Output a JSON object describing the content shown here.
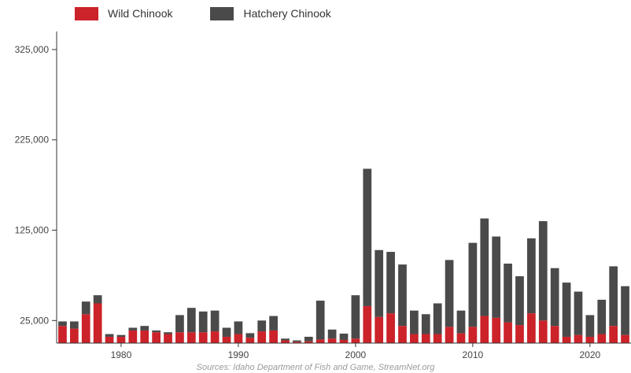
{
  "legend": {
    "wild_label": "Wild Chinook",
    "hatchery_label": "Hatchery Chinook"
  },
  "colors": {
    "wild": "#cc2229",
    "hatchery": "#4a4a4a",
    "axis": "#333333",
    "tick_text": "#444444"
  },
  "source": "Sources: Idaho Department of Fish and Game, StreamNet.org",
  "chart_data": {
    "type": "bar",
    "stacked": true,
    "categories": [
      1975,
      1976,
      1977,
      1978,
      1979,
      1980,
      1981,
      1982,
      1983,
      1984,
      1985,
      1986,
      1987,
      1988,
      1989,
      1990,
      1991,
      1992,
      1993,
      1994,
      1995,
      1996,
      1997,
      1998,
      1999,
      2000,
      2001,
      2002,
      2003,
      2004,
      2005,
      2006,
      2007,
      2008,
      2009,
      2010,
      2011,
      2012,
      2013,
      2014,
      2015,
      2016,
      2017,
      2018,
      2019,
      2020,
      2021,
      2022,
      2023
    ],
    "series": [
      {
        "name": "Wild Chinook",
        "values": [
          19000,
          16000,
          32000,
          44000,
          7000,
          7000,
          14000,
          14000,
          12000,
          10000,
          12000,
          12000,
          12000,
          13000,
          7000,
          10000,
          6000,
          13000,
          14000,
          3000,
          1500,
          2000,
          4000,
          5000,
          3500,
          5000,
          41000,
          29000,
          33000,
          19000,
          10000,
          10000,
          10000,
          18000,
          11000,
          18000,
          30000,
          28000,
          23000,
          20000,
          33000,
          25000,
          19000,
          7000,
          9000,
          7000,
          10000,
          19000,
          9000
        ]
      },
      {
        "name": "Hatchery Chinook",
        "values": [
          5000,
          8000,
          14000,
          9000,
          3000,
          2000,
          3000,
          5000,
          2000,
          2000,
          19000,
          27000,
          23000,
          23000,
          10000,
          14000,
          5000,
          12000,
          16000,
          2000,
          1500,
          5000,
          43000,
          10000,
          7000,
          48000,
          152000,
          74000,
          68000,
          68000,
          26000,
          22000,
          34000,
          74000,
          25000,
          93000,
          108000,
          90000,
          65000,
          54000,
          83000,
          110000,
          64000,
          60000,
          48000,
          24000,
          38000,
          66000,
          54000
        ]
      }
    ],
    "x_ticks": [
      1980,
      1990,
      2000,
      2010,
      2020
    ],
    "x_tick_labels": [
      "1980",
      "1990",
      "2000",
      "2010",
      "2020"
    ],
    "y_ticks": [
      25000,
      125000,
      225000,
      325000
    ],
    "y_tick_labels": [
      "25,000",
      "125,000",
      "225,000",
      "325,000"
    ],
    "xlim": [
      1974.5,
      2023.5
    ],
    "ylim": [
      0,
      345000
    ],
    "grid": false,
    "legend_position": "top-left"
  }
}
